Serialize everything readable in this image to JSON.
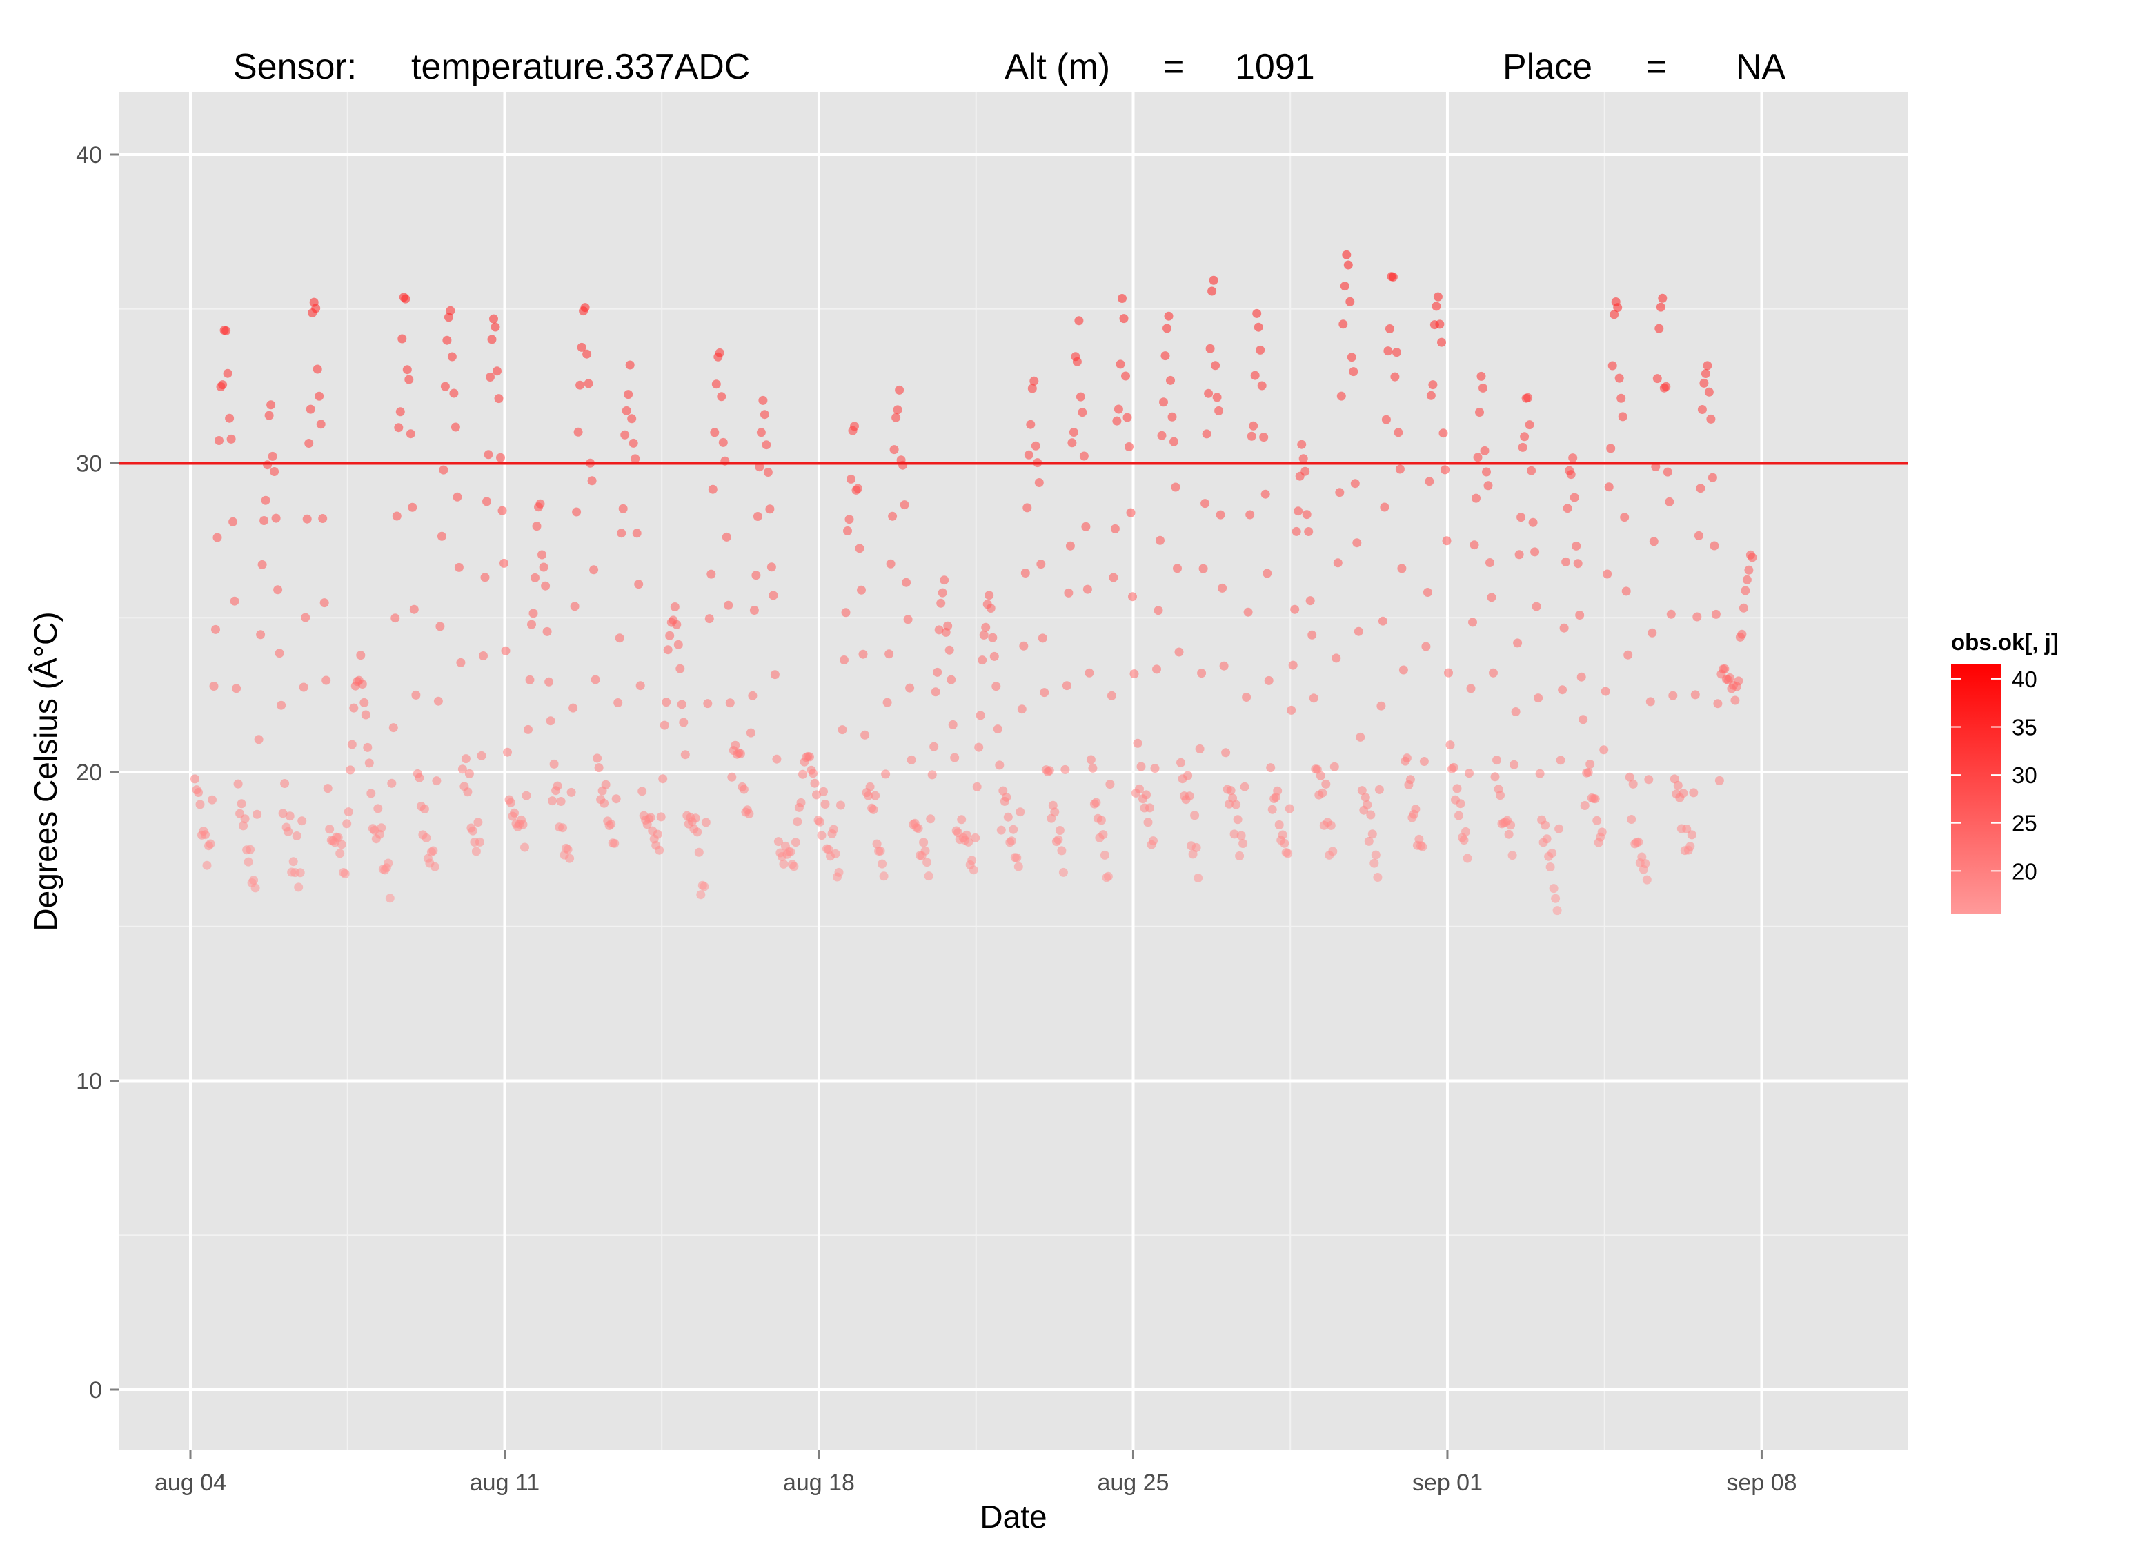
{
  "chart_data": {
    "type": "scatter",
    "title_parts": [
      "Sensor:",
      "temperature.337ADC",
      "Alt (m)",
      "=",
      "1091",
      "Place",
      "=",
      "NA"
    ],
    "xlabel": "Date",
    "ylabel": "Degrees Celsius (Â°C)",
    "x_ticks": [
      "aug 04",
      "aug 11",
      "aug 18",
      "aug 25",
      "sep 01",
      "sep 08"
    ],
    "y_ticks": [
      "0",
      "10",
      "20",
      "30",
      "40"
    ],
    "ylim": [
      -2,
      42
    ],
    "xlim_days": [
      -1.6,
      38.2
    ],
    "x_is_days_since": "aug 04",
    "reference_line": {
      "y": 30,
      "color": "#ee1c1c"
    },
    "panel_background": "#e5e5e5",
    "grid": true,
    "legend": {
      "title": "obs.ok[, j]",
      "position": "right",
      "labels": [
        "40",
        "35",
        "30",
        "25",
        "20"
      ],
      "color_high": "#ff0000",
      "color_low": "#ff9a9a",
      "range": [
        15.5,
        41.5
      ]
    },
    "series": [
      {
        "daily_cycles": [
          {
            "day": 0,
            "min": 16.6,
            "max": 34.6
          },
          {
            "day": 1,
            "min": 16.2,
            "max": 31.9
          },
          {
            "day": 2,
            "min": 15.9,
            "max": 35.2
          },
          {
            "day": 3,
            "min": 17.0,
            "max": 23.5
          },
          {
            "day": 4,
            "min": 15.6,
            "max": 35.2
          },
          {
            "day": 5,
            "min": 16.4,
            "max": 35.0
          },
          {
            "day": 6,
            "min": 17.3,
            "max": 35.3
          },
          {
            "day": 7,
            "min": 17.4,
            "max": 28.5
          },
          {
            "day": 8,
            "min": 17.0,
            "max": 35.0
          },
          {
            "day": 9,
            "min": 17.2,
            "max": 33.2
          },
          {
            "day": 10,
            "min": 17.4,
            "max": 25.4
          },
          {
            "day": 11,
            "min": 16.2,
            "max": 33.5
          },
          {
            "day": 12,
            "min": 18.7,
            "max": 32.0
          },
          {
            "day": 13,
            "min": 17.0,
            "max": 20.6
          },
          {
            "day": 14,
            "min": 16.5,
            "max": 31.1
          },
          {
            "day": 15,
            "min": 16.9,
            "max": 32.3
          },
          {
            "day": 16,
            "min": 16.8,
            "max": 26.0
          },
          {
            "day": 17,
            "min": 16.8,
            "max": 25.7
          },
          {
            "day": 18,
            "min": 16.8,
            "max": 32.6
          },
          {
            "day": 19,
            "min": 16.6,
            "max": 34.6
          },
          {
            "day": 20,
            "min": 16.4,
            "max": 35.2
          },
          {
            "day": 21,
            "min": 17.5,
            "max": 34.9
          },
          {
            "day": 22,
            "min": 16.8,
            "max": 35.8
          },
          {
            "day": 23,
            "min": 17.2,
            "max": 34.7
          },
          {
            "day": 24,
            "min": 17.3,
            "max": 30.5
          },
          {
            "day": 25,
            "min": 17.3,
            "max": 36.8
          },
          {
            "day": 26,
            "min": 16.4,
            "max": 35.8
          },
          {
            "day": 27,
            "min": 17.1,
            "max": 36.0
          },
          {
            "day": 28,
            "min": 17.4,
            "max": 32.7
          },
          {
            "day": 29,
            "min": 17.4,
            "max": 32.1
          },
          {
            "day": 30,
            "min": 15.8,
            "max": 30.4
          },
          {
            "day": 31,
            "min": 17.4,
            "max": 35.3
          },
          {
            "day": 32,
            "min": 16.0,
            "max": 35.3
          },
          {
            "day": 33,
            "min": 17.0,
            "max": 33.5
          },
          {
            "day": 34,
            "min": 22.6,
            "max": 27.0
          }
        ]
      }
    ]
  }
}
